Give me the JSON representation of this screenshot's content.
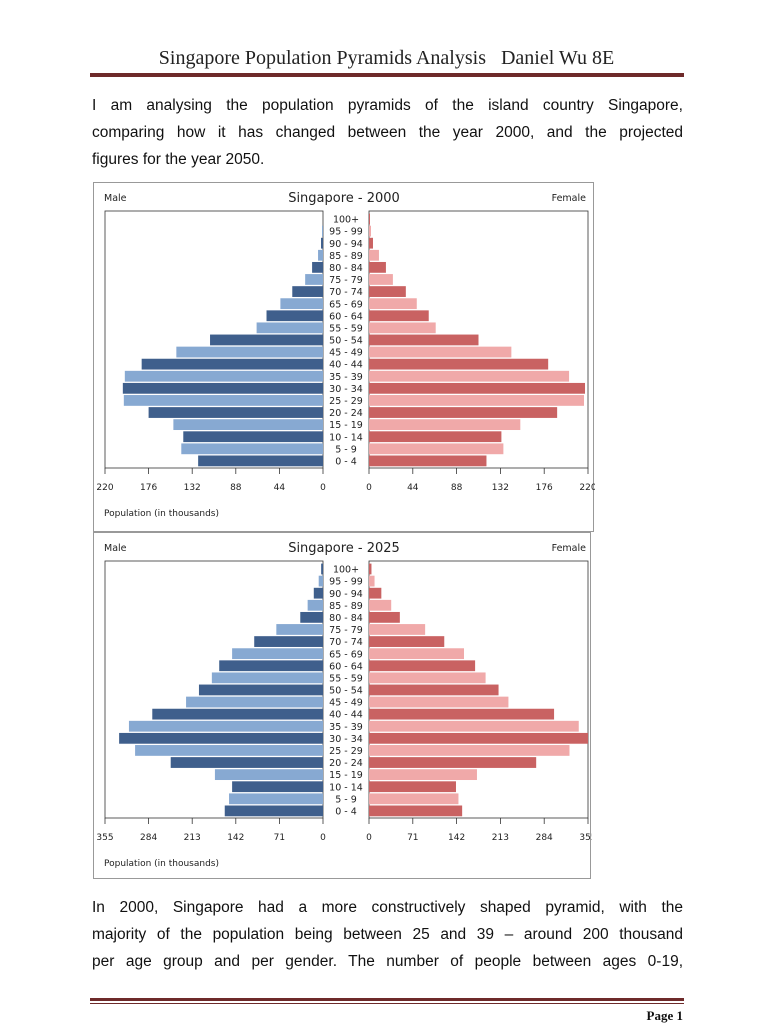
{
  "header": {
    "title": "Singapore Population Pyramids Analysis   Daniel Wu 8E"
  },
  "intro": {
    "lines": [
      "I am analysing the population pyramids of the island country Singapore,",
      "comparing how it has changed between the year 2000, and the projected",
      "figures for the year 2050."
    ]
  },
  "body": {
    "lines": [
      "In 2000, Singapore had a more constructively shaped pyramid, with the",
      "majority of the population being between 25 and 39 – around 200 thousand",
      "per age group and per gender. The number of people between ages 0-19,"
    ]
  },
  "footer": {
    "page": "Page 1"
  },
  "colors": {
    "male_dark": "#3f5f8c",
    "male_light": "#87a9d2",
    "female_dark": "#c96262",
    "female_light": "#f0a9a9"
  },
  "chart_data": [
    {
      "type": "bar",
      "title": "Singapore - 2000",
      "left_label": "Male",
      "right_label": "Female",
      "xlabel": "Population (in thousands)",
      "xlim": [
        0,
        220
      ],
      "ticks": [
        "220",
        "176",
        "132",
        "88",
        "44",
        "0"
      ],
      "tick_values": [
        220,
        176,
        132,
        88,
        44,
        0
      ],
      "categories": [
        "100+",
        "95 - 99",
        "90 - 94",
        "85 - 89",
        "80 - 84",
        "75 - 79",
        "70 - 74",
        "65 - 69",
        "60 - 64",
        "55 - 59",
        "50 - 54",
        "45 - 49",
        "40 - 44",
        "35 - 39",
        "30 - 34",
        "25 - 29",
        "20 - 24",
        "15 - 19",
        "10 - 14",
        "5 - 9",
        "0 - 4"
      ],
      "series": [
        {
          "name": "Male",
          "values": [
            0,
            1,
            2,
            5,
            11,
            18,
            31,
            43,
            57,
            67,
            114,
            148,
            183,
            200,
            202,
            201,
            176,
            151,
            141,
            143,
            126
          ]
        },
        {
          "name": "Female",
          "values": [
            1,
            2,
            4,
            10,
            17,
            24,
            37,
            48,
            60,
            67,
            110,
            143,
            180,
            201,
            217,
            216,
            189,
            152,
            133,
            135,
            118
          ]
        }
      ]
    },
    {
      "type": "bar",
      "title": "Singapore - 2025",
      "left_label": "Male",
      "right_label": "Female",
      "xlabel": "Population (in thousands)",
      "xlim": [
        0,
        355
      ],
      "ticks": [
        "355",
        "284",
        "213",
        "142",
        "71",
        "0"
      ],
      "tick_values": [
        355,
        284,
        213,
        142,
        71,
        0
      ],
      "categories": [
        "100+",
        "95 - 99",
        "90 - 94",
        "85 - 89",
        "80 - 84",
        "75 - 79",
        "70 - 74",
        "65 - 69",
        "60 - 64",
        "55 - 59",
        "50 - 54",
        "45 - 49",
        "40 - 44",
        "35 - 39",
        "30 - 34",
        "25 - 29",
        "20 - 24",
        "15 - 19",
        "10 - 14",
        "5 - 9",
        "0 - 4"
      ],
      "series": [
        {
          "name": "Male",
          "values": [
            3,
            7,
            15,
            25,
            37,
            76,
            112,
            148,
            169,
            181,
            202,
            223,
            278,
            316,
            332,
            306,
            248,
            176,
            148,
            153,
            160
          ]
        },
        {
          "name": "Female",
          "values": [
            4,
            9,
            20,
            36,
            50,
            91,
            122,
            154,
            172,
            189,
            210,
            226,
            300,
            340,
            355,
            325,
            271,
            175,
            141,
            145,
            151
          ]
        }
      ]
    }
  ]
}
